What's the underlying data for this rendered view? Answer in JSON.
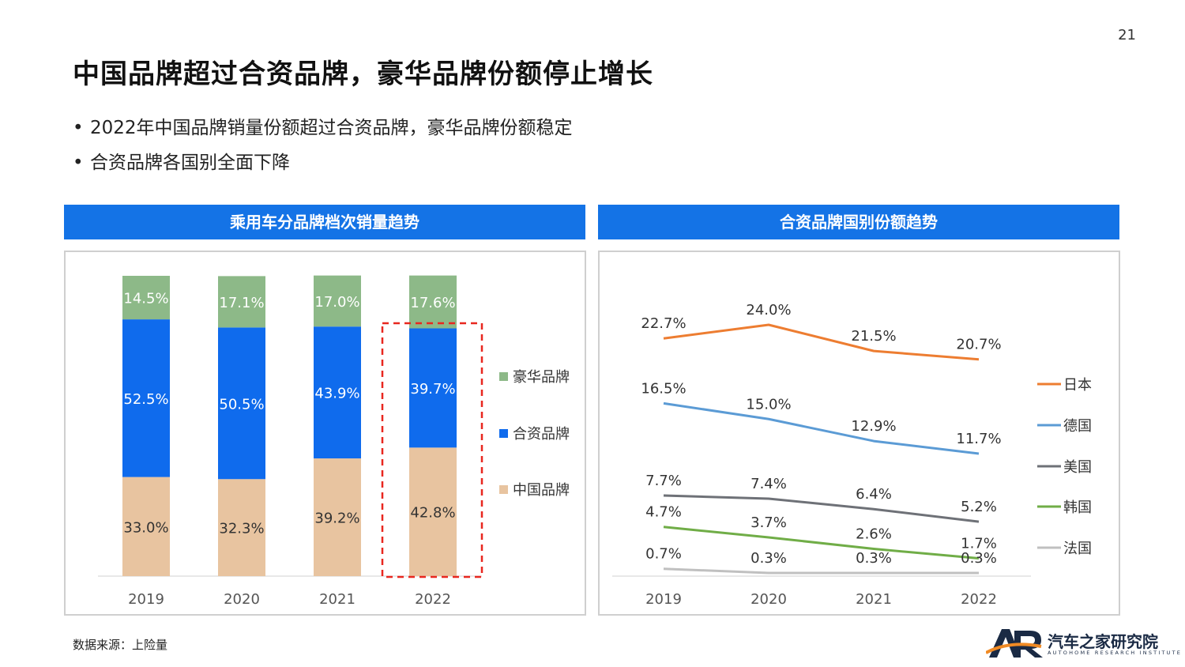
{
  "page": {
    "number": "21",
    "title": "中国品牌超过合资品牌，豪华品牌份额停止增长"
  },
  "bullets": [
    "2022年中国品牌销量份额超过合资品牌，豪华品牌份额稳定",
    "合资品牌各国别全面下降"
  ],
  "panels": {
    "left_title": "乘用车分品牌档次销量趋势",
    "right_title": "合资品牌国别份额趋势"
  },
  "source": "数据来源：上险量",
  "logo": {
    "name": "汽车之家研究院",
    "sub": "AUTOHOME RESEARCH INSTITUTE"
  },
  "chart_data": [
    {
      "type": "bar",
      "stacked": true,
      "categories": [
        "2019",
        "2020",
        "2021",
        "2022"
      ],
      "series": [
        {
          "name": "中国品牌",
          "color": "#e8c4a0",
          "values": [
            33.0,
            32.3,
            39.2,
            42.8
          ],
          "labels": [
            "33.0%",
            "32.3%",
            "39.2%",
            "42.8%"
          ]
        },
        {
          "name": "合资品牌",
          "color": "#0f6bed",
          "values": [
            52.5,
            50.5,
            43.9,
            39.7
          ],
          "labels": [
            "52.5%",
            "50.5%",
            "43.9%",
            "39.7%"
          ]
        },
        {
          "name": "豪华品牌",
          "color": "#8db988",
          "values": [
            14.5,
            17.1,
            17.0,
            17.6
          ],
          "labels": [
            "14.5%",
            "17.1%",
            "17.0%",
            "17.6%"
          ]
        }
      ],
      "highlight": {
        "category": "2022",
        "style": "red dashed box"
      }
    },
    {
      "type": "line",
      "x": [
        "2019",
        "2020",
        "2021",
        "2022"
      ],
      "series": [
        {
          "name": "日本",
          "color": "#ed7d31",
          "values": [
            22.7,
            24.0,
            21.5,
            20.7
          ],
          "labels": [
            "22.7%",
            "24.0%",
            "21.5%",
            "20.7%"
          ]
        },
        {
          "name": "德国",
          "color": "#5b9bd5",
          "values": [
            16.5,
            15.0,
            12.9,
            11.7
          ],
          "labels": [
            "16.5%",
            "15.0%",
            "12.9%",
            "11.7%"
          ]
        },
        {
          "name": "美国",
          "color": "#6e7177",
          "values": [
            7.7,
            7.4,
            6.4,
            5.2
          ],
          "labels": [
            "7.7%",
            "7.4%",
            "6.4%",
            "5.2%"
          ]
        },
        {
          "name": "韩国",
          "color": "#70ad47",
          "values": [
            4.7,
            3.7,
            2.6,
            1.7
          ],
          "labels": [
            "4.7%",
            "3.7%",
            "2.6%",
            "1.7%"
          ]
        },
        {
          "name": "法国",
          "color": "#c0c0c0",
          "values": [
            0.7,
            0.3,
            0.3,
            0.3
          ],
          "labels": [
            "0.7%",
            "0.3%",
            "0.3%",
            "0.3%"
          ]
        }
      ]
    }
  ]
}
